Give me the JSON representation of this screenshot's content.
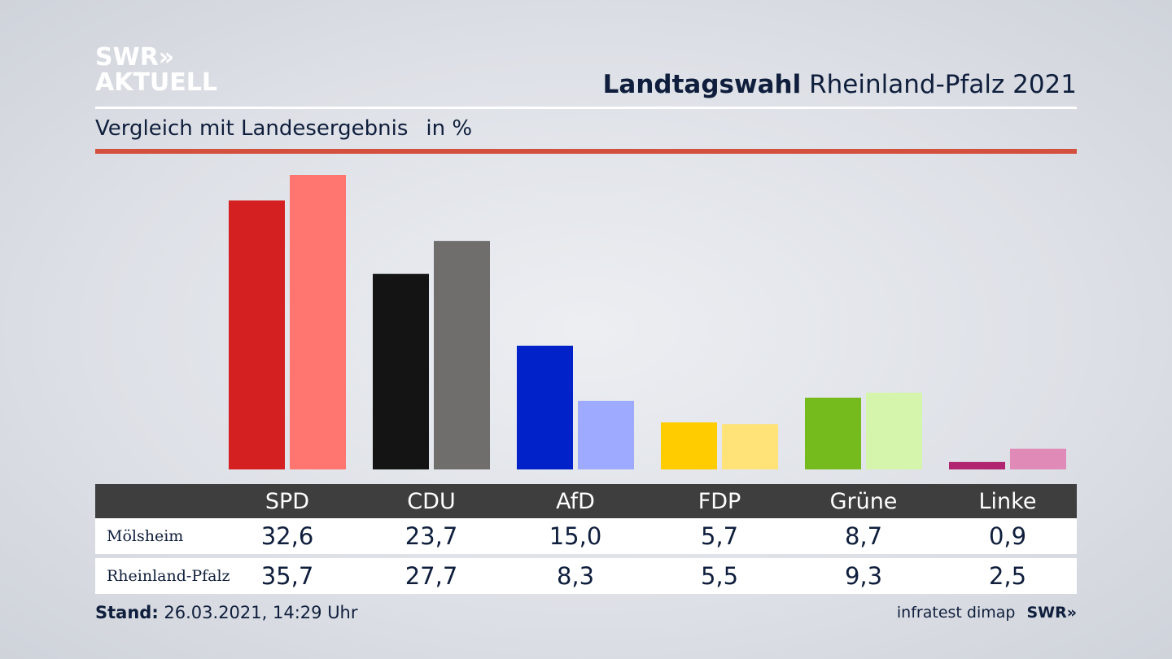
{
  "logo": {
    "line1": "SWR»",
    "line2": "AKTUELL"
  },
  "title": {
    "bold": "Landtagswahl",
    "regular": "Rheinland-Pfalz 2021"
  },
  "subtitle": {
    "text": "Vergleich mit Landesergebnis",
    "unit": "in %"
  },
  "table": {
    "rows": [
      {
        "label": "Mölsheim",
        "values": [
          "32,6",
          "23,7",
          "15,0",
          "5,7",
          "8,7",
          "0,9"
        ]
      },
      {
        "label": "Rheinland-Pfalz",
        "values": [
          "35,7",
          "27,7",
          "8,3",
          "5,5",
          "9,3",
          "2,5"
        ]
      }
    ]
  },
  "footer": {
    "stand_label": "Stand:",
    "stand_value": "26.03.2021, 14:29 Uhr",
    "source": "infratest dimap",
    "brand": "SWR»"
  },
  "chart_data": {
    "type": "bar",
    "categories": [
      "SPD",
      "CDU",
      "AfD",
      "FDP",
      "Grüne",
      "Linke"
    ],
    "series": [
      {
        "name": "Mölsheim",
        "values": [
          32.6,
          23.7,
          15.0,
          5.7,
          8.7,
          0.9
        ],
        "colors": [
          "#d42020",
          "#141414",
          "#0022c8",
          "#ffcc00",
          "#76bb1e",
          "#b02470"
        ]
      },
      {
        "name": "Rheinland-Pfalz",
        "values": [
          35.7,
          27.7,
          8.3,
          5.5,
          9.3,
          2.5
        ],
        "colors": [
          "#ff7570",
          "#6f6e6c",
          "#9eaaff",
          "#ffe278",
          "#d6f5ac",
          "#e08ab8"
        ]
      }
    ],
    "ylim": [
      0,
      35.7
    ]
  }
}
